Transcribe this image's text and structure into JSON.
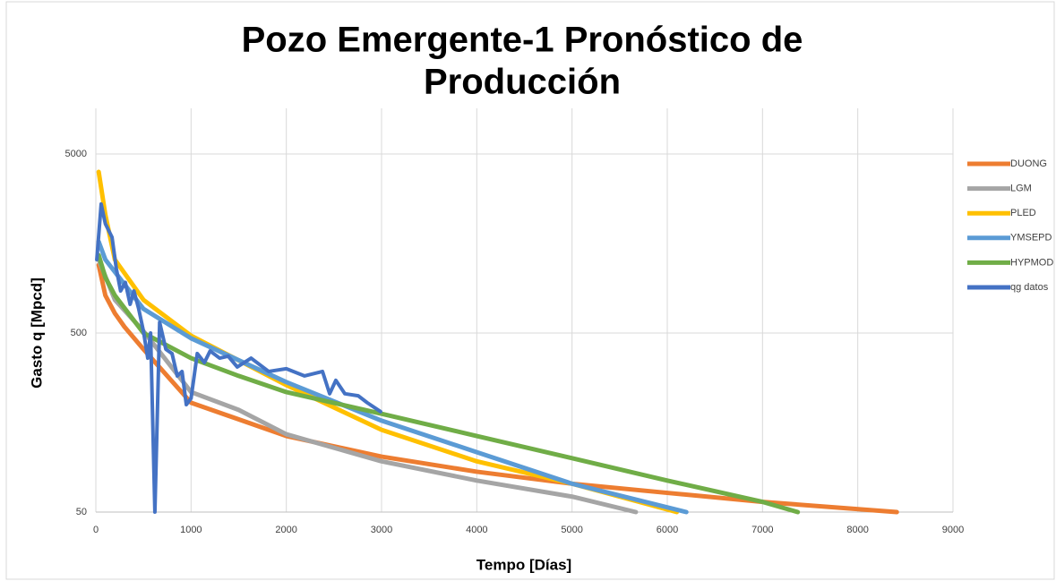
{
  "chart_data": {
    "type": "line",
    "title": [
      "Pozo Emergente-1 Pronóstico de",
      "Producción"
    ],
    "x_label": "Tempo [Días]",
    "y_label": "Gasto q [Mpcd]",
    "xlim": [
      0,
      9000
    ],
    "xticks": [
      0,
      1000,
      2000,
      3000,
      4000,
      5000,
      6000,
      7000,
      8000,
      9000
    ],
    "ylim": [
      50,
      9000
    ],
    "yticks": [
      50,
      500,
      5000
    ],
    "ylog": true,
    "grid": true,
    "legend": "right",
    "series": [
      {
        "name": "DUONG",
        "color": "#ed7d31",
        "x": [
          30,
          100,
          200,
          300,
          500,
          1000,
          2000,
          3000,
          4000,
          5000,
          6000,
          7000,
          8410
        ],
        "values": [
          1200,
          811,
          644,
          542,
          406,
          204,
          133,
          102,
          84,
          72,
          64,
          57,
          50
        ]
      },
      {
        "name": "LGM",
        "color": "#a5a5a5",
        "x": [
          30,
          200,
          500,
          1000,
          1500,
          2000,
          3000,
          4000,
          5000,
          5670
        ],
        "values": [
          1285,
          766,
          512,
          234,
          186,
          136,
          96,
          75,
          61,
          50
        ]
      },
      {
        "name": "PLED",
        "color": "#ffc000",
        "x": [
          30,
          100,
          200,
          500,
          1000,
          2000,
          3000,
          4000,
          5000,
          6100
        ],
        "values": [
          3972,
          2286,
          1285,
          766,
          483,
          256,
          144,
          96,
          72,
          50
        ]
      },
      {
        "name": "YMSEPD",
        "color": "#5b9bd5",
        "x": [
          30,
          100,
          500,
          1000,
          2000,
          3000,
          4000,
          5000,
          6200
        ],
        "values": [
          1618,
          1285,
          682,
          467,
          266,
          162,
          108,
          72,
          50
        ]
      },
      {
        "name": "HYPMOD",
        "color": "#70ad47",
        "x": [
          30,
          100,
          200,
          500,
          1000,
          1500,
          2000,
          3000,
          4000,
          5000,
          6000,
          7000,
          7370
        ],
        "values": [
          1361,
          1021,
          811,
          500,
          362,
          288,
          234,
          177,
          133,
          100,
          75,
          57,
          50
        ]
      },
      {
        "name": "qg datos",
        "color": "#4472c4",
        "x": [
          10,
          56,
          100,
          170,
          215,
          260,
          310,
          360,
          400,
          450,
          500,
          545,
          575,
          620,
          670,
          735,
          800,
          855,
          905,
          950,
          1000,
          1065,
          1140,
          1200,
          1300,
          1390,
          1485,
          1630,
          1815,
          2000,
          2190,
          2380,
          2455,
          2520,
          2615,
          2755,
          2850,
          2990
        ],
        "values": [
          1285,
          2626,
          2037,
          1714,
          1146,
          859,
          958,
          723,
          859,
          682,
          512,
          362,
          500,
          50,
          574,
          406,
          384,
          288,
          305,
          199,
          216,
          384,
          342,
          397,
          362,
          371,
          323,
          362,
          305,
          316,
          288,
          305,
          229,
          272,
          229,
          223,
          204,
          182
        ]
      }
    ]
  }
}
